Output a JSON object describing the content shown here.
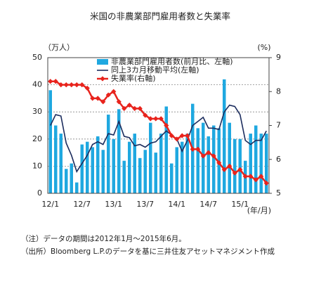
{
  "chart_data": {
    "type": "bar",
    "title": "米国の非農業部門雇用者数と失業率",
    "y_label": "（万人）",
    "y2_label": "(%)",
    "x_label": "(年/月)",
    "categories": [
      "12/1",
      null,
      null,
      null,
      null,
      null,
      "12/7",
      null,
      null,
      null,
      null,
      null,
      "13/1",
      null,
      null,
      null,
      null,
      null,
      "13/7",
      null,
      null,
      null,
      null,
      null,
      "14/1",
      null,
      null,
      null,
      null,
      null,
      "14/7",
      null,
      null,
      null,
      null,
      null,
      "15/1",
      null,
      null,
      null,
      null,
      null
    ],
    "series": [
      {
        "name": "非農業部門雇用者数(前月比、左軸)",
        "type": "bar",
        "axis": "y",
        "color": "#1fa8e0",
        "values": [
          38,
          25,
          22,
          9,
          11,
          4,
          18,
          19,
          17,
          21,
          16,
          29,
          20,
          31,
          12,
          19,
          22,
          13,
          16,
          26,
          15,
          22,
          32,
          11,
          17,
          19,
          22,
          33,
          24,
          26,
          21,
          25,
          24,
          42,
          26,
          20,
          20,
          12,
          22,
          25,
          22,
          22
        ]
      },
      {
        "name": "同上3カ月移動平均(左軸)",
        "type": "line",
        "axis": "y",
        "color": "#1c2d5e",
        "values": [
          25,
          29,
          28.5,
          18.5,
          14,
          8,
          11,
          14,
          18,
          19,
          18,
          22,
          21.5,
          26.5,
          21,
          20.5,
          17.5,
          18,
          17,
          18.5,
          19,
          21,
          23,
          21.5,
          20,
          15.5,
          19.5,
          25,
          26.5,
          28,
          24,
          24,
          23.5,
          30,
          32.5,
          32,
          29,
          19.5,
          18,
          19.5,
          19.5,
          23
        ]
      },
      {
        "name": "失業率(右軸)",
        "type": "line",
        "axis": "y2",
        "color": "#e8231c",
        "marker": "diamond",
        "values": [
          8.3,
          8.3,
          8.2,
          8.2,
          8.2,
          8.2,
          8.2,
          8.1,
          7.8,
          7.8,
          7.7,
          7.9,
          8.0,
          7.7,
          7.5,
          7.6,
          7.5,
          7.5,
          7.3,
          7.2,
          7.2,
          7.2,
          7.0,
          6.7,
          6.6,
          6.7,
          6.7,
          6.3,
          6.3,
          6.1,
          6.2,
          6.1,
          5.9,
          5.7,
          5.8,
          5.6,
          5.7,
          5.5,
          5.5,
          5.4,
          5.5,
          5.3
        ]
      }
    ],
    "ylim": [
      0,
      50
    ],
    "yticks": [
      0,
      10,
      20,
      30,
      40,
      50
    ],
    "y2lim": [
      5,
      9
    ],
    "y2ticks": [
      5,
      6,
      7,
      8,
      9
    ],
    "grid": true,
    "legend": "top-left",
    "notes": [
      "（注）データの期間は2012年1月～2015年6月。",
      "（出所）Bloomberg L.P.のデータを基に三井住友アセットマネジメント作成"
    ]
  }
}
